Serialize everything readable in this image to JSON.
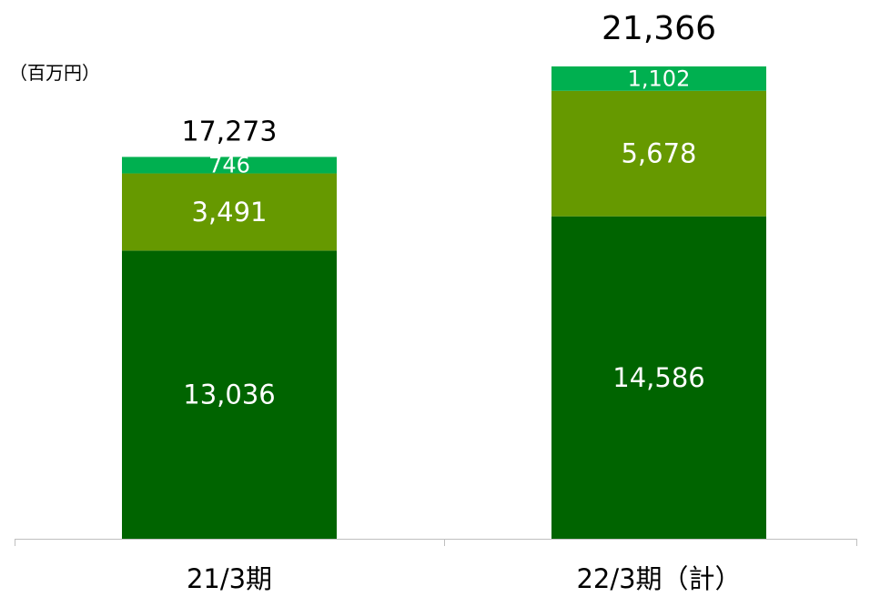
{
  "chart_data": {
    "type": "bar",
    "stacked": true,
    "unit_label": "（百万円）",
    "categories": [
      "21/3期",
      "22/3期（計）"
    ],
    "series": [
      {
        "values": [
          13036,
          14586
        ],
        "color": "#006400"
      },
      {
        "values": [
          3491,
          5678
        ],
        "color": "#669900"
      },
      {
        "values": [
          746,
          1102
        ],
        "color": "#00b050"
      }
    ],
    "totals": [
      "17,273",
      "21,366"
    ],
    "segment_labels": [
      [
        "13,036",
        "3,491",
        "746"
      ],
      [
        "14,586",
        "5,678",
        "1,102"
      ]
    ],
    "ylim": [
      0,
      21366
    ],
    "grid": false,
    "legend": false
  }
}
